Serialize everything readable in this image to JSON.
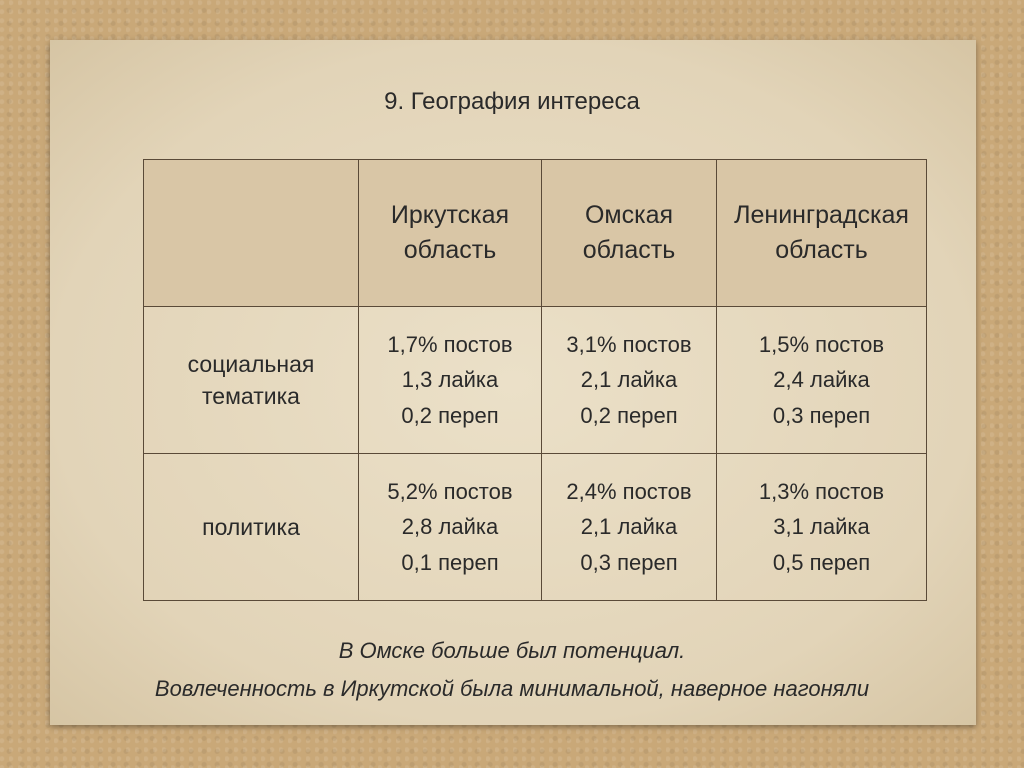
{
  "title": "9. География интереса",
  "table": {
    "columns": [
      "Иркутская область",
      "Омская область",
      "Ленинградская область"
    ],
    "rows": [
      {
        "label": "социальная тематика",
        "cells": [
          [
            "1,7% постов",
            "1,3 лайка",
            "0,2 переп"
          ],
          [
            "3,1% постов",
            "2,1 лайка",
            "0,2 переп"
          ],
          [
            "1,5% постов",
            "2,4 лайка",
            "0,3 переп"
          ]
        ]
      },
      {
        "label": "политика",
        "cells": [
          [
            "5,2% постов",
            "2,8 лайка",
            "0,1 переп"
          ],
          [
            "2,4% постов",
            "2,1 лайка",
            "0,3 переп"
          ],
          [
            "1,3% постов",
            "3,1 лайка",
            "0,5 переп"
          ]
        ]
      }
    ]
  },
  "notes": [
    "В Омске больше был потенциал.",
    "Вовлеченность в Иркутской была минимальной, наверное нагоняли"
  ]
}
